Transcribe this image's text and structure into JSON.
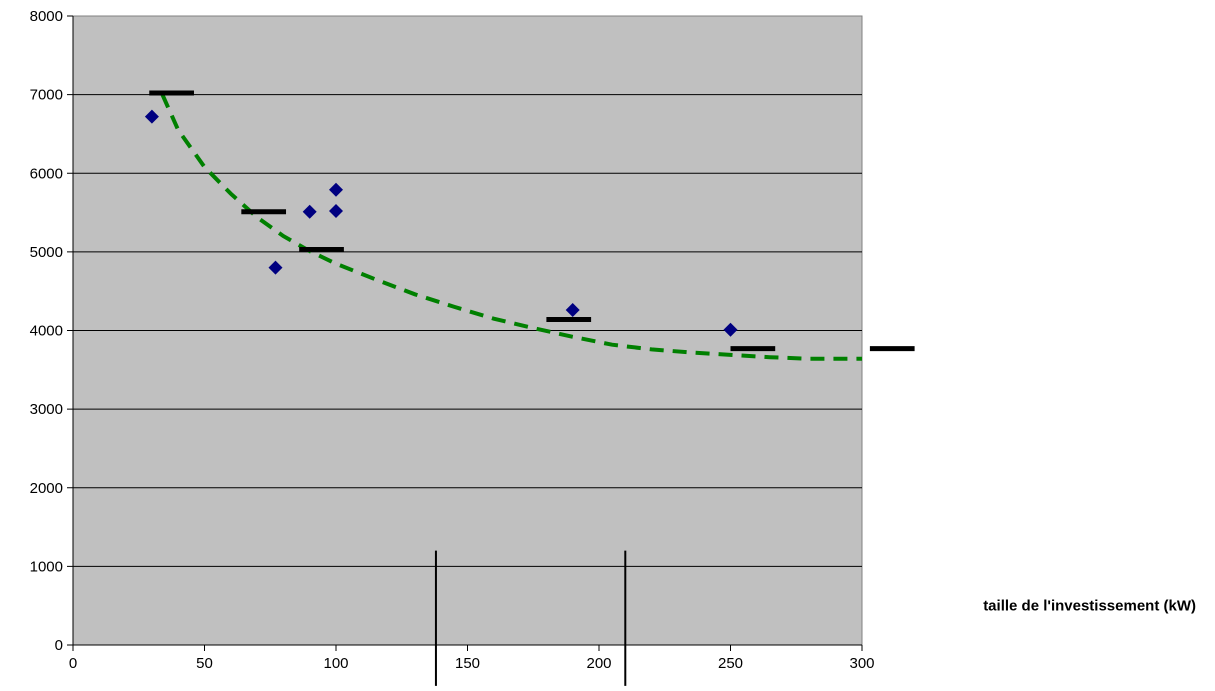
{
  "chart_data": {
    "type": "scatter",
    "title": "",
    "xlabel": "taille de l'investissement (kW)",
    "ylabel": "",
    "xlim": [
      0,
      300
    ],
    "ylim": [
      0,
      8000
    ],
    "x_ticks": [
      0,
      50,
      100,
      150,
      200,
      250,
      300
    ],
    "y_ticks": [
      0,
      1000,
      2000,
      3000,
      4000,
      5000,
      6000,
      7000,
      8000
    ],
    "grid": "horizontal",
    "plot_background": "#C0C0C0",
    "series": [
      {
        "type": "scatter",
        "marker": "diamond",
        "color": "#000080",
        "points": [
          {
            "x": 30,
            "y": 6720
          },
          {
            "x": 77,
            "y": 4800
          },
          {
            "x": 90,
            "y": 5510
          },
          {
            "x": 100,
            "y": 5790
          },
          {
            "x": 100,
            "y": 5520
          },
          {
            "x": 190,
            "y": 4260
          },
          {
            "x": 250,
            "y": 4010
          }
        ]
      },
      {
        "type": "segments",
        "color": "#000000",
        "segments": [
          {
            "x0": 29,
            "x1": 46,
            "y": 7020
          },
          {
            "x0": 64,
            "x1": 81,
            "y": 5510
          },
          {
            "x0": 86,
            "x1": 103,
            "y": 5030
          },
          {
            "x0": 180,
            "x1": 197,
            "y": 4140
          },
          {
            "x0": 250,
            "x1": 267,
            "y": 3770
          },
          {
            "x0": 303,
            "x1": 320,
            "y": 3770
          }
        ]
      },
      {
        "type": "line",
        "style": "dashed",
        "color": "#008000",
        "points": [
          {
            "x": 34,
            "y": 7000
          },
          {
            "x": 40,
            "y": 6550
          },
          {
            "x": 50,
            "y": 6080
          },
          {
            "x": 60,
            "y": 5740
          },
          {
            "x": 70,
            "y": 5440
          },
          {
            "x": 80,
            "y": 5200
          },
          {
            "x": 90,
            "y": 5010
          },
          {
            "x": 100,
            "y": 4850
          },
          {
            "x": 115,
            "y": 4650
          },
          {
            "x": 130,
            "y": 4460
          },
          {
            "x": 145,
            "y": 4300
          },
          {
            "x": 160,
            "y": 4150
          },
          {
            "x": 175,
            "y": 4030
          },
          {
            "x": 190,
            "y": 3920
          },
          {
            "x": 205,
            "y": 3820
          },
          {
            "x": 220,
            "y": 3760
          },
          {
            "x": 235,
            "y": 3720
          },
          {
            "x": 250,
            "y": 3690
          },
          {
            "x": 265,
            "y": 3660
          },
          {
            "x": 280,
            "y": 3640
          },
          {
            "x": 300,
            "y": 3640
          }
        ]
      }
    ],
    "vertical_markers": [
      {
        "x": 138,
        "y_top": 1200,
        "y_bottom": -520
      },
      {
        "x": 210,
        "y_top": 1200,
        "y_bottom": -520
      }
    ]
  }
}
